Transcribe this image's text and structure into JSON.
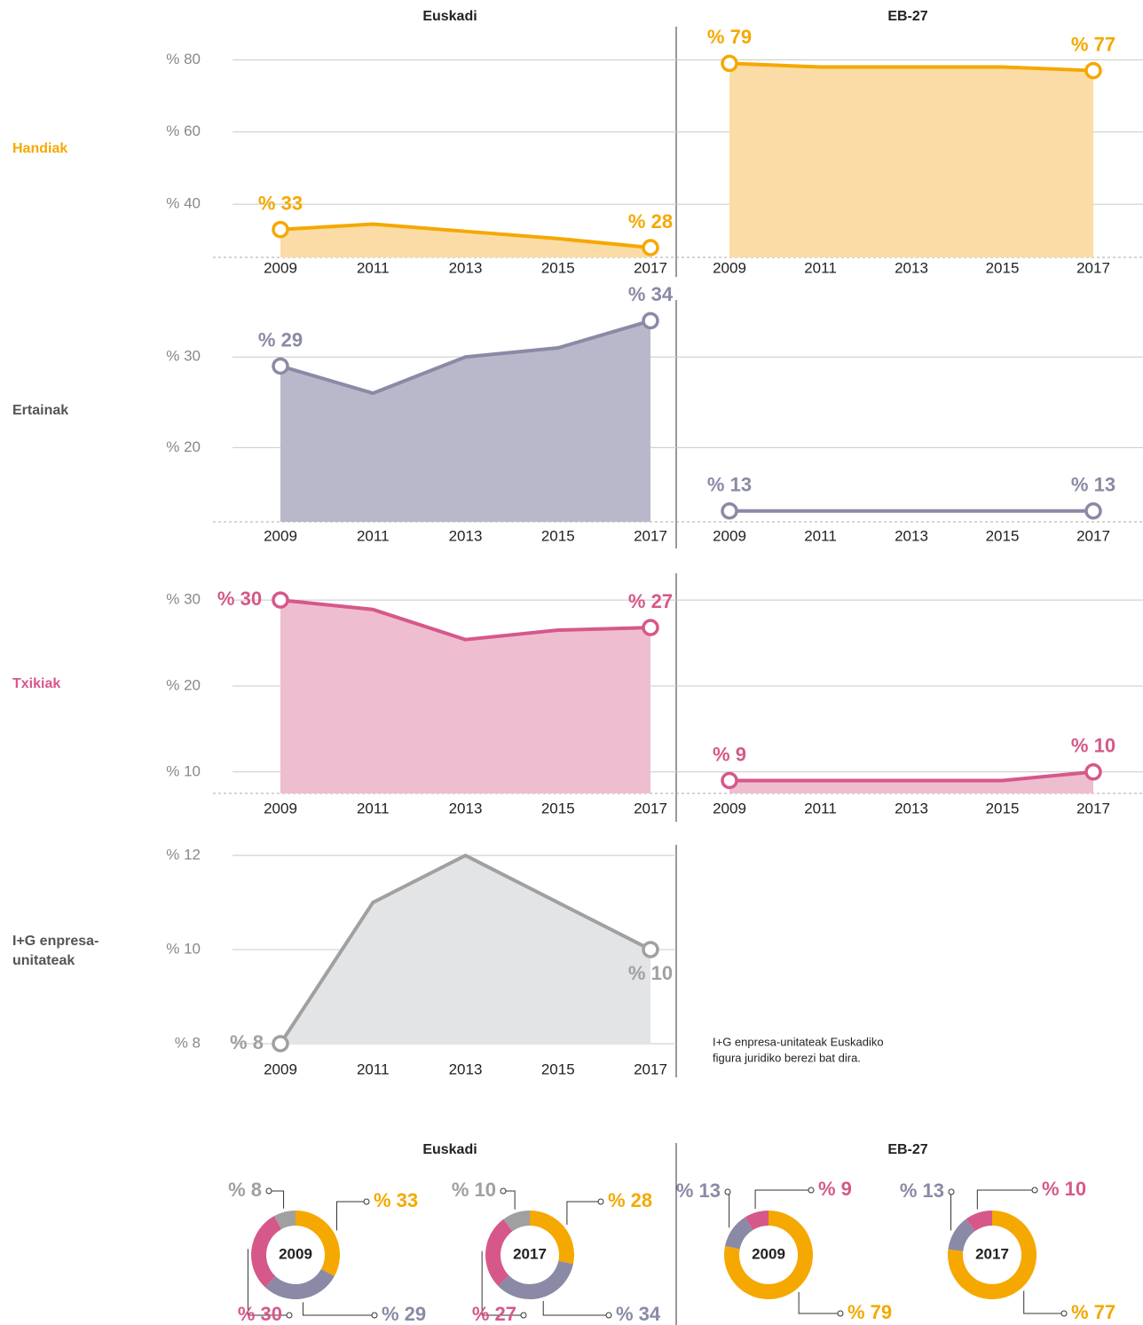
{
  "columns": [
    "Euskadi",
    "EB-27"
  ],
  "note": [
    "I+G enpresa-unitateak Euskadiko",
    "figura juridiko berezi bat dira."
  ],
  "chart_data": [
    {
      "type": "area",
      "title": "Handiak",
      "color": "#f5a800",
      "fill": "#fbdca6",
      "categories": [
        "2009",
        "2011",
        "2013",
        "2015",
        "2017"
      ],
      "values": [
        33,
        34.5,
        32.5,
        30.5,
        28
      ],
      "value_labels": [
        "% 33",
        null,
        null,
        null,
        "% 28"
      ],
      "ylim": [
        25.3,
        85
      ],
      "yticks": [
        {
          "value": 40,
          "label": "% 40"
        },
        {
          "value": 60,
          "label": "% 60"
        },
        {
          "value": 80,
          "label": "% 80"
        }
      ]
    },
    {
      "type": "area",
      "color": "#f5a800",
      "fill": "#fbdca6",
      "categories": [
        "2009",
        "2011",
        "2013",
        "2015",
        "2017"
      ],
      "values": [
        79,
        78,
        78,
        78,
        77
      ],
      "value_labels": [
        "% 79",
        null,
        null,
        null,
        "% 77"
      ],
      "ylim": [
        25.3,
        85
      ]
    },
    {
      "type": "area",
      "title": "Ertainak",
      "color": "#8a8aa6",
      "fill": "#b8b8ca",
      "categories": [
        "2009",
        "2011",
        "2013",
        "2015",
        "2017"
      ],
      "values": [
        29,
        26,
        30,
        31,
        34
      ],
      "value_labels": [
        "% 29",
        null,
        null,
        null,
        "% 34"
      ],
      "ylim": [
        11.8,
        36.1
      ],
      "yticks": [
        {
          "value": 20,
          "label": "% 20"
        },
        {
          "value": 30,
          "label": "% 30"
        }
      ]
    },
    {
      "type": "line",
      "color": "#8a8aa6",
      "categories": [
        "2009",
        "2011",
        "2013",
        "2015",
        "2017"
      ],
      "values": [
        13,
        13,
        13,
        13,
        13
      ],
      "value_labels": [
        "% 13",
        null,
        null,
        null,
        "% 13"
      ],
      "ylim": [
        11.8,
        36.1
      ]
    },
    {
      "type": "area",
      "title": "Txikiak",
      "color": "#d6588a",
      "fill": "#efbdd0",
      "categories": [
        "2009",
        "2011",
        "2013",
        "2015",
        "2017"
      ],
      "values": [
        30,
        28.9,
        25.4,
        26.5,
        26.8
      ],
      "value_labels": [
        "% 30",
        null,
        null,
        null,
        "% 27"
      ],
      "ylim": [
        7.5,
        32.7
      ],
      "yticks": [
        {
          "value": 10,
          "label": "% 10"
        },
        {
          "value": 20,
          "label": "% 20"
        },
        {
          "value": 30,
          "label": "% 30"
        }
      ]
    },
    {
      "type": "area",
      "color": "#d6588a",
      "fill": "#efbdd0",
      "categories": [
        "2009",
        "2011",
        "2013",
        "2015",
        "2017"
      ],
      "values": [
        9,
        9,
        9,
        9,
        10
      ],
      "value_labels": [
        "% 9",
        null,
        null,
        null,
        "% 10"
      ],
      "ylim": [
        7.5,
        32.7
      ]
    },
    {
      "type": "area",
      "title": "I+G enpresa-unitateak",
      "color": "#a0a0a0",
      "fill": "#e2e4e6",
      "categories": [
        "2009",
        "2011",
        "2013",
        "2015",
        "2017"
      ],
      "values": [
        8,
        11,
        12,
        11,
        10
      ],
      "value_labels": [
        "% 8",
        null,
        null,
        null,
        "% 10"
      ],
      "ylim": [
        8,
        12.3
      ],
      "yticks": [
        {
          "value": 8,
          "label": "% 8"
        },
        {
          "value": 10,
          "label": "% 10"
        },
        {
          "value": 12,
          "label": "% 12"
        }
      ]
    },
    {
      "type": "pie",
      "title": "2009",
      "values": [
        33,
        29,
        30,
        8
      ],
      "value_labels": [
        "% 33",
        "% 29",
        "% 30",
        "% 8"
      ],
      "colors": [
        "#f5a800",
        "#8a8aa6",
        "#d6588a",
        "#a0a0a0"
      ]
    },
    {
      "type": "pie",
      "title": "2017",
      "values": [
        28,
        34,
        27,
        10
      ],
      "value_labels": [
        "% 28",
        "% 34",
        "% 27",
        "% 10"
      ],
      "colors": [
        "#f5a800",
        "#8a8aa6",
        "#d6588a",
        "#a0a0a0"
      ]
    },
    {
      "type": "pie",
      "title": "2009",
      "values": [
        79,
        13,
        9
      ],
      "value_labels": [
        "% 79",
        "% 13",
        "% 9"
      ],
      "colors": [
        "#f5a800",
        "#8a8aa6",
        "#d6588a"
      ]
    },
    {
      "type": "pie",
      "title": "2017",
      "values": [
        77,
        13,
        10
      ],
      "value_labels": [
        "% 77",
        "% 13",
        "% 10"
      ],
      "colors": [
        "#f5a800",
        "#8a8aa6",
        "#d6588a"
      ]
    }
  ]
}
